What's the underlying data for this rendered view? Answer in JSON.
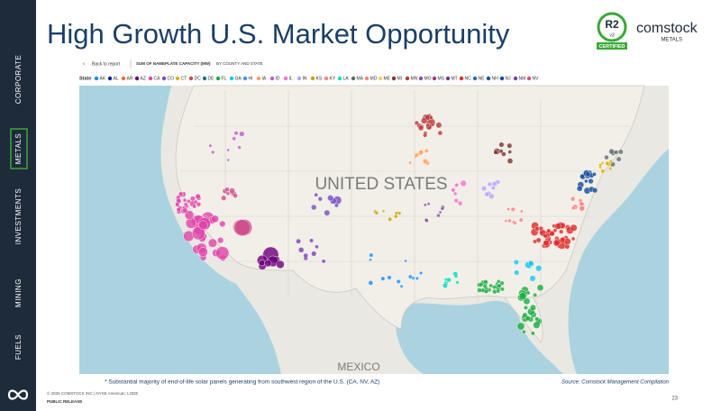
{
  "sidebar": {
    "items": [
      "CORPORATE",
      "METALS",
      "INVESTMENTS",
      "MINING",
      "FUELS"
    ],
    "active": "METALS"
  },
  "header": {
    "title": "High Growth U.S. Market Opportunity",
    "logo": {
      "badge": "R2",
      "badge_version": "v3",
      "badge_caption": "CERTIFIED",
      "brand": "comstock",
      "brand_sub": "METALS"
    }
  },
  "report": {
    "back": "Back to report",
    "measure": "SUM OF NAMEPLATE CAPACITY (MW)",
    "grouping": "BY COUNTY AND STATE",
    "legend": {
      "title": "State",
      "items": [
        {
          "name": "AK",
          "color": "#118dff"
        },
        {
          "name": "AL",
          "color": "#12239e"
        },
        {
          "name": "AR",
          "color": "#e66c37"
        },
        {
          "name": "AZ",
          "color": "#6b007b"
        },
        {
          "name": "CA",
          "color": "#e044a7"
        },
        {
          "name": "CO",
          "color": "#744ec2"
        },
        {
          "name": "CT",
          "color": "#d9b300"
        },
        {
          "name": "DC",
          "color": "#d64550"
        },
        {
          "name": "DE",
          "color": "#197278"
        },
        {
          "name": "FL",
          "color": "#1aab40"
        },
        {
          "name": "GA",
          "color": "#15c6f4"
        },
        {
          "name": "HI",
          "color": "#4092ff"
        },
        {
          "name": "IA",
          "color": "#ffa058"
        },
        {
          "name": "ID",
          "color": "#be5dc9"
        },
        {
          "name": "IL",
          "color": "#f472d0"
        },
        {
          "name": "IN",
          "color": "#b5a1ff"
        },
        {
          "name": "KS",
          "color": "#c4a200"
        },
        {
          "name": "KY",
          "color": "#ff8080"
        },
        {
          "name": "LA",
          "color": "#00dbbc"
        },
        {
          "name": "MA",
          "color": "#5f6b6d"
        },
        {
          "name": "MD",
          "color": "#fb8281"
        },
        {
          "name": "ME",
          "color": "#f4d25a"
        },
        {
          "name": "MI",
          "color": "#7f312f"
        },
        {
          "name": "MN",
          "color": "#b73a3a"
        },
        {
          "name": "MO",
          "color": "#8d4fa0"
        },
        {
          "name": "MS",
          "color": "#a43b76"
        },
        {
          "name": "MT",
          "color": "#6a3d9a"
        },
        {
          "name": "NC",
          "color": "#e02828"
        },
        {
          "name": "NE",
          "color": "#2b6cb0"
        },
        {
          "name": "NH",
          "color": "#0a5a8a"
        },
        {
          "name": "NJ",
          "color": "#114a9e"
        },
        {
          "name": "NM",
          "color": "#7a3cc2"
        },
        {
          "name": "NV",
          "color": "#d0508d"
        }
      ]
    },
    "map_labels": [
      "UNITED STATES",
      "MEXICO"
    ]
  },
  "footnote": "* Substantial majority of end-of-life solar panels generating from southwest region of the U.S. (CA, NV, AZ)",
  "source": "Source: Comstock Management Compilation",
  "footer": {
    "copyright": "© 2026 COMSTOCK INC | NYSE American: LODE",
    "classification": "PUBLIC RELEASE",
    "page": "23"
  }
}
